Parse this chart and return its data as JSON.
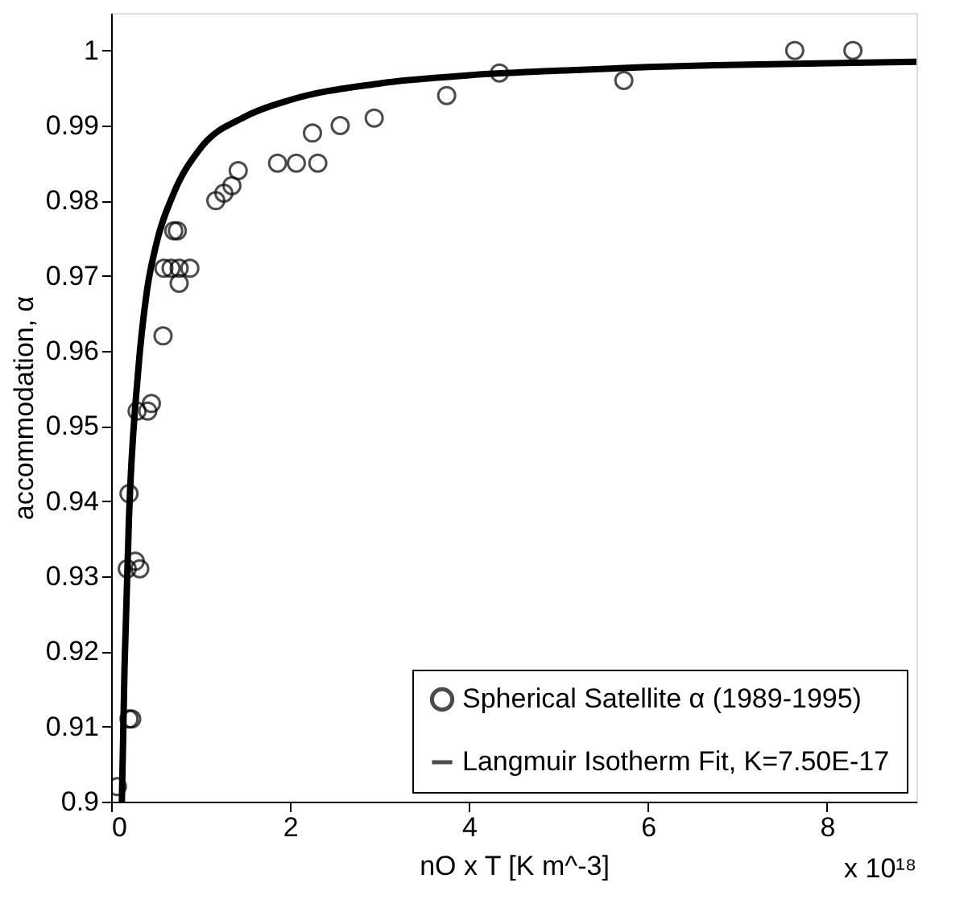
{
  "chart_data": {
    "type": "scatter",
    "xlabel": "nO x T [K m^-3]",
    "ylabel": "accommodation, α",
    "xlim": [
      0,
      9
    ],
    "xticks": [
      0,
      2,
      4,
      6,
      8
    ],
    "ylim": [
      0.9,
      1.005
    ],
    "yticks": [
      0.9,
      0.91,
      0.92,
      0.93,
      0.94,
      0.95,
      0.96,
      0.97,
      0.98,
      0.99,
      1
    ],
    "legend": "bottom right",
    "grid": false,
    "annotations": [
      "x 10¹⁸"
    ],
    "series": [
      {
        "name": "Spherical Satellite α (1989-1995)",
        "marker": "circle",
        "color": "#000000",
        "x": [
          0.07,
          0.2,
          0.18,
          0.27,
          0.32,
          0.2,
          0.23,
          0.29,
          0.41,
          0.45,
          0.58,
          0.59,
          0.67,
          0.76,
          0.88,
          0.76,
          0.7,
          0.74,
          1.17,
          1.26,
          1.35,
          1.42,
          1.86,
          2.07,
          2.31,
          2.25,
          2.56,
          2.94,
          3.75,
          4.34,
          5.73,
          7.64,
          8.29
        ],
        "values": [
          0.902,
          0.941,
          0.931,
          0.932,
          0.931,
          0.911,
          0.911,
          0.952,
          0.952,
          0.953,
          0.962,
          0.971,
          0.971,
          0.971,
          0.971,
          0.969,
          0.976,
          0.976,
          0.98,
          0.981,
          0.982,
          0.984,
          0.985,
          0.985,
          0.985,
          0.989,
          0.99,
          0.991,
          0.994,
          0.997,
          0.996,
          1.0,
          1.0
        ]
      },
      {
        "name": "Langmuir Isotherm Fit, K=7.50E-17",
        "type": "line",
        "marker": "none",
        "color": "#000000",
        "line_style": "solid",
        "x": [
          0.12,
          0.15,
          0.2,
          0.3,
          0.4,
          0.5,
          0.7,
          1,
          1.5,
          2,
          3,
          4,
          5,
          6,
          7,
          9
        ],
        "values": [
          0.9,
          0.918,
          0.938,
          0.957,
          0.968,
          0.974,
          0.981,
          0.987,
          0.9912,
          0.9934,
          0.9956,
          0.9967,
          0.9973,
          0.9978,
          0.9981,
          0.9985
        ]
      }
    ]
  }
}
